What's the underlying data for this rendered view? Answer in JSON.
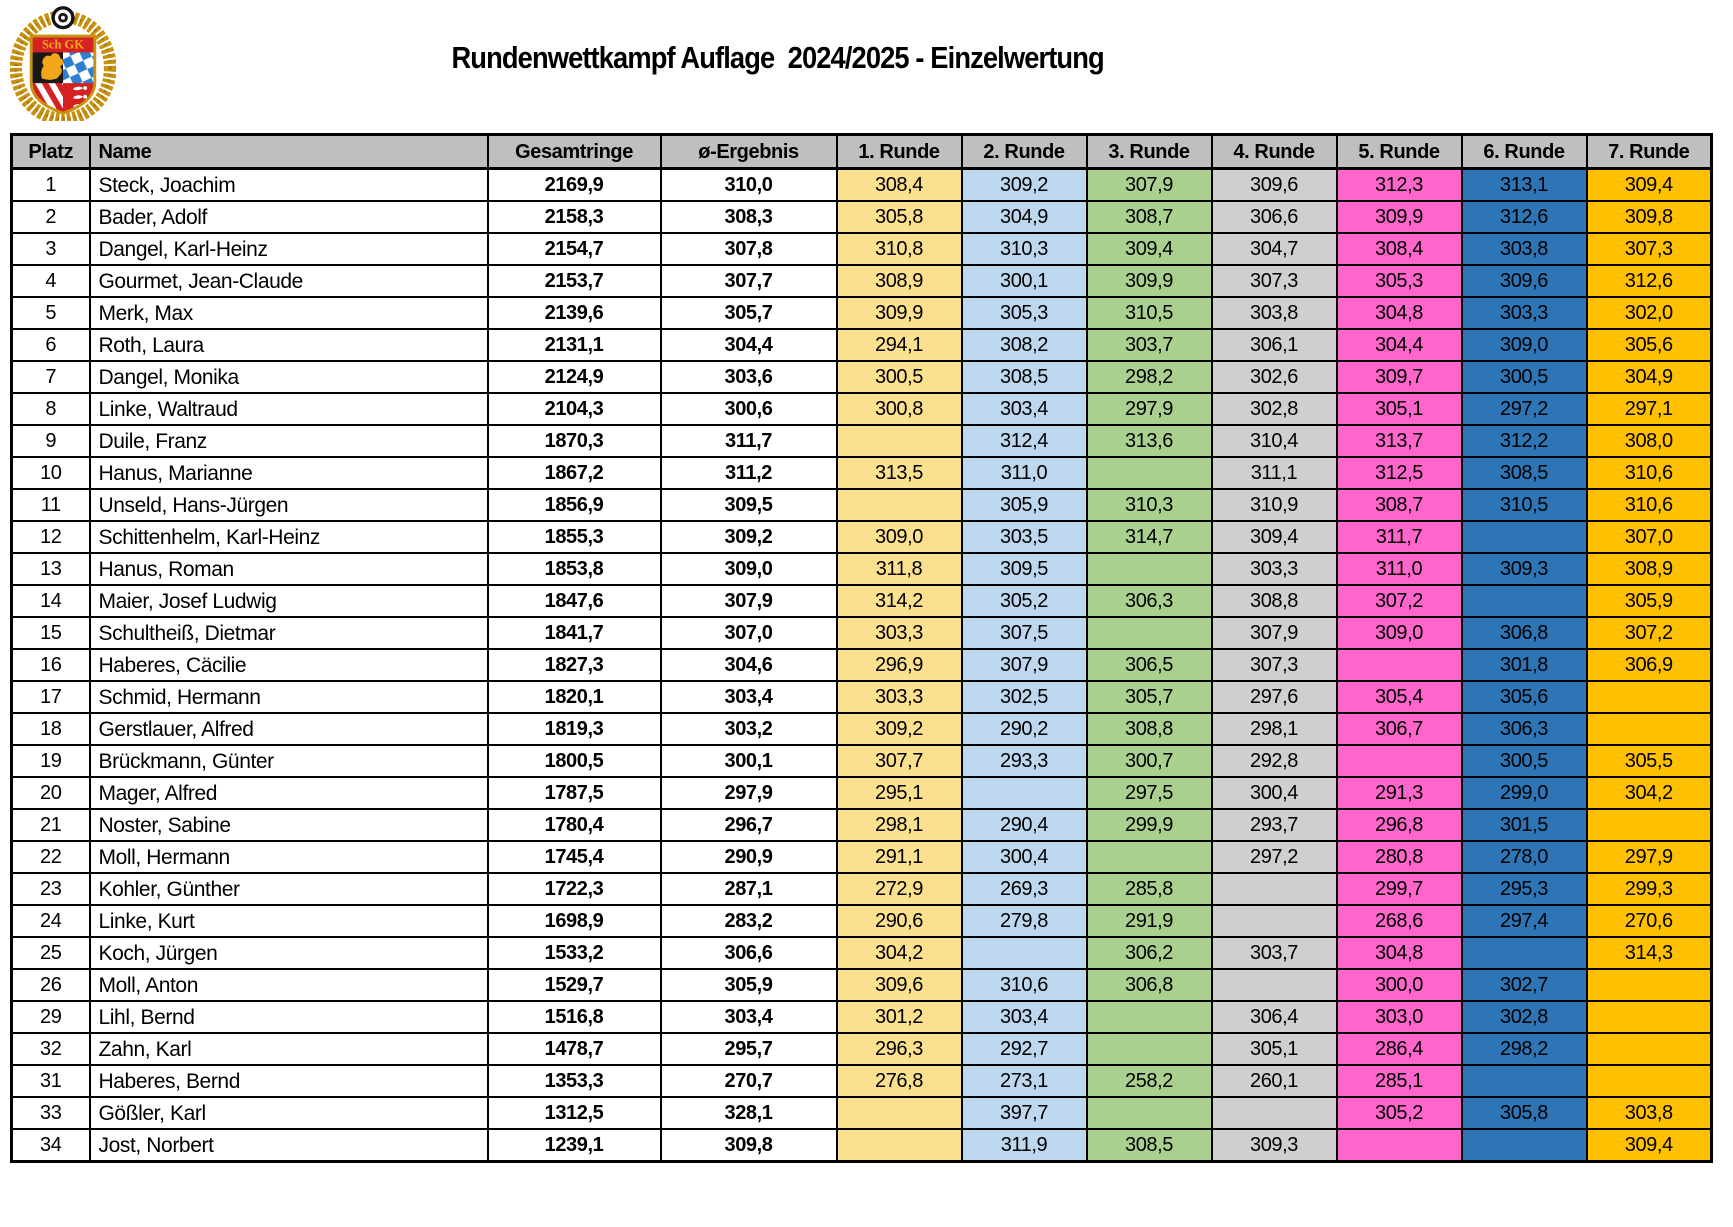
{
  "title": "Rundenwettkampf Auflage  2024/2025 - Einzelwertung",
  "logo": {
    "name": "shooting-club-crest"
  },
  "colors": {
    "header_bg": "#BFBFBF",
    "round_columns": [
      "#FBE08F",
      "#BDD7EE",
      "#A9D08E",
      "#D0CECE",
      "#FF66CC",
      "#2E75B6",
      "#FFC000"
    ],
    "border": "#000000"
  },
  "table": {
    "headers": [
      "Platz",
      "Name",
      "Gesamtringe",
      "ø-Ergebnis",
      "1. Runde",
      "2. Runde",
      "3. Runde",
      "4. Runde",
      "5. Runde",
      "6. Runde",
      "7. Runde"
    ],
    "rows": [
      {
        "platz": "1",
        "name": "Steck, Joachim",
        "gesamt": "2169,9",
        "avg": "310,0",
        "rounds": [
          "308,4",
          "309,2",
          "307,9",
          "309,6",
          "312,3",
          "313,1",
          "309,4"
        ]
      },
      {
        "platz": "2",
        "name": "Bader, Adolf",
        "gesamt": "2158,3",
        "avg": "308,3",
        "rounds": [
          "305,8",
          "304,9",
          "308,7",
          "306,6",
          "309,9",
          "312,6",
          "309,8"
        ]
      },
      {
        "platz": "3",
        "name": "Dangel, Karl-Heinz",
        "gesamt": "2154,7",
        "avg": "307,8",
        "rounds": [
          "310,8",
          "310,3",
          "309,4",
          "304,7",
          "308,4",
          "303,8",
          "307,3"
        ]
      },
      {
        "platz": "4",
        "name": "Gourmet, Jean-Claude",
        "gesamt": "2153,7",
        "avg": "307,7",
        "rounds": [
          "308,9",
          "300,1",
          "309,9",
          "307,3",
          "305,3",
          "309,6",
          "312,6"
        ]
      },
      {
        "platz": "5",
        "name": "Merk, Max",
        "gesamt": "2139,6",
        "avg": "305,7",
        "rounds": [
          "309,9",
          "305,3",
          "310,5",
          "303,8",
          "304,8",
          "303,3",
          "302,0"
        ]
      },
      {
        "platz": "6",
        "name": "Roth, Laura",
        "gesamt": "2131,1",
        "avg": "304,4",
        "rounds": [
          "294,1",
          "308,2",
          "303,7",
          "306,1",
          "304,4",
          "309,0",
          "305,6"
        ]
      },
      {
        "platz": "7",
        "name": "Dangel, Monika",
        "gesamt": "2124,9",
        "avg": "303,6",
        "rounds": [
          "300,5",
          "308,5",
          "298,2",
          "302,6",
          "309,7",
          "300,5",
          "304,9"
        ]
      },
      {
        "platz": "8",
        "name": "Linke, Waltraud",
        "gesamt": "2104,3",
        "avg": "300,6",
        "rounds": [
          "300,8",
          "303,4",
          "297,9",
          "302,8",
          "305,1",
          "297,2",
          "297,1"
        ]
      },
      {
        "platz": "9",
        "name": "Duile, Franz",
        "gesamt": "1870,3",
        "avg": "311,7",
        "rounds": [
          "",
          "312,4",
          "313,6",
          "310,4",
          "313,7",
          "312,2",
          "308,0"
        ]
      },
      {
        "platz": "10",
        "name": "Hanus, Marianne",
        "gesamt": "1867,2",
        "avg": "311,2",
        "rounds": [
          "313,5",
          "311,0",
          "",
          "311,1",
          "312,5",
          "308,5",
          "310,6"
        ]
      },
      {
        "platz": "11",
        "name": "Unseld, Hans-Jürgen",
        "gesamt": "1856,9",
        "avg": "309,5",
        "rounds": [
          "",
          "305,9",
          "310,3",
          "310,9",
          "308,7",
          "310,5",
          "310,6"
        ]
      },
      {
        "platz": "12",
        "name": "Schittenhelm, Karl-Heinz",
        "gesamt": "1855,3",
        "avg": "309,2",
        "rounds": [
          "309,0",
          "303,5",
          "314,7",
          "309,4",
          "311,7",
          "",
          "307,0"
        ]
      },
      {
        "platz": "13",
        "name": "Hanus, Roman",
        "gesamt": "1853,8",
        "avg": "309,0",
        "rounds": [
          "311,8",
          "309,5",
          "",
          "303,3",
          "311,0",
          "309,3",
          "308,9"
        ]
      },
      {
        "platz": "14",
        "name": "Maier, Josef Ludwig",
        "gesamt": "1847,6",
        "avg": "307,9",
        "rounds": [
          "314,2",
          "305,2",
          "306,3",
          "308,8",
          "307,2",
          "",
          "305,9"
        ]
      },
      {
        "platz": "15",
        "name": "Schultheiß, Dietmar",
        "gesamt": "1841,7",
        "avg": "307,0",
        "rounds": [
          "303,3",
          "307,5",
          "",
          "307,9",
          "309,0",
          "306,8",
          "307,2"
        ]
      },
      {
        "platz": "16",
        "name": "Haberes, Cäcilie",
        "gesamt": "1827,3",
        "avg": "304,6",
        "rounds": [
          "296,9",
          "307,9",
          "306,5",
          "307,3",
          "",
          "301,8",
          "306,9"
        ]
      },
      {
        "platz": "17",
        "name": "Schmid, Hermann",
        "gesamt": "1820,1",
        "avg": "303,4",
        "rounds": [
          "303,3",
          "302,5",
          "305,7",
          "297,6",
          "305,4",
          "305,6",
          ""
        ]
      },
      {
        "platz": "18",
        "name": "Gerstlauer, Alfred",
        "gesamt": "1819,3",
        "avg": "303,2",
        "rounds": [
          "309,2",
          "290,2",
          "308,8",
          "298,1",
          "306,7",
          "306,3",
          ""
        ]
      },
      {
        "platz": "19",
        "name": "Brückmann, Günter",
        "gesamt": "1800,5",
        "avg": "300,1",
        "rounds": [
          "307,7",
          "293,3",
          "300,7",
          "292,8",
          "",
          "300,5",
          "305,5"
        ]
      },
      {
        "platz": "20",
        "name": "Mager, Alfred",
        "gesamt": "1787,5",
        "avg": "297,9",
        "rounds": [
          "295,1",
          "",
          "297,5",
          "300,4",
          "291,3",
          "299,0",
          "304,2"
        ]
      },
      {
        "platz": "21",
        "name": "Noster, Sabine",
        "gesamt": "1780,4",
        "avg": "296,7",
        "rounds": [
          "298,1",
          "290,4",
          "299,9",
          "293,7",
          "296,8",
          "301,5",
          ""
        ]
      },
      {
        "platz": "22",
        "name": "Moll, Hermann",
        "gesamt": "1745,4",
        "avg": "290,9",
        "rounds": [
          "291,1",
          "300,4",
          "",
          "297,2",
          "280,8",
          "278,0",
          "297,9"
        ]
      },
      {
        "platz": "23",
        "name": "Kohler, Günther",
        "gesamt": "1722,3",
        "avg": "287,1",
        "rounds": [
          "272,9",
          "269,3",
          "285,8",
          "",
          "299,7",
          "295,3",
          "299,3"
        ]
      },
      {
        "platz": "24",
        "name": "Linke, Kurt",
        "gesamt": "1698,9",
        "avg": "283,2",
        "rounds": [
          "290,6",
          "279,8",
          "291,9",
          "",
          "268,6",
          "297,4",
          "270,6"
        ]
      },
      {
        "platz": "25",
        "name": "Koch, Jürgen",
        "gesamt": "1533,2",
        "avg": "306,6",
        "rounds": [
          "304,2",
          "",
          "306,2",
          "303,7",
          "304,8",
          "",
          "314,3"
        ]
      },
      {
        "platz": "26",
        "name": "Moll, Anton",
        "gesamt": "1529,7",
        "avg": "305,9",
        "rounds": [
          "309,6",
          "310,6",
          "306,8",
          "",
          "300,0",
          "302,7",
          ""
        ]
      },
      {
        "platz": "29",
        "name": "Lihl, Bernd",
        "gesamt": "1516,8",
        "avg": "303,4",
        "rounds": [
          "301,2",
          "303,4",
          "",
          "306,4",
          "303,0",
          "302,8",
          ""
        ]
      },
      {
        "platz": "32",
        "name": "Zahn, Karl",
        "gesamt": "1478,7",
        "avg": "295,7",
        "rounds": [
          "296,3",
          "292,7",
          "",
          "305,1",
          "286,4",
          "298,2",
          ""
        ]
      },
      {
        "platz": "31",
        "name": "Haberes, Bernd",
        "gesamt": "1353,3",
        "avg": "270,7",
        "rounds": [
          "276,8",
          "273,1",
          "258,2",
          "260,1",
          "285,1",
          "",
          ""
        ]
      },
      {
        "platz": "33",
        "name": "Gößler, Karl",
        "gesamt": "1312,5",
        "avg": "328,1",
        "rounds": [
          "",
          "397,7",
          "",
          "",
          "305,2",
          "305,8",
          "303,8"
        ]
      },
      {
        "platz": "34",
        "name": "Jost, Norbert",
        "gesamt": "1239,1",
        "avg": "309,8",
        "rounds": [
          "",
          "311,9",
          "308,5",
          "309,3",
          "",
          "",
          "309,4"
        ]
      }
    ]
  }
}
